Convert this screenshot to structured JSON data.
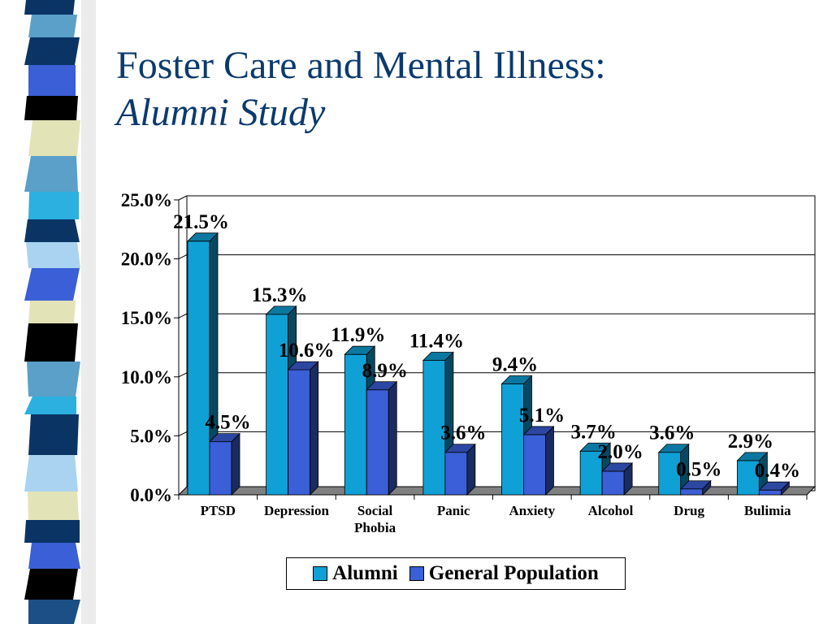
{
  "slide": {
    "title": "Foster Care and Mental Illness:",
    "subtitle": "Alumni Study"
  },
  "theme": {
    "title_color": "#0b3a6e",
    "stripe_colors": [
      "#0a3464",
      "#3b8bcc",
      "#e3e3b8",
      "#000000",
      "#5aa0c8",
      "#3a5fd6",
      "#a9d3f0",
      "#1c4f86",
      "#2bb0e0"
    ]
  },
  "chart_data": {
    "type": "bar",
    "categories": [
      "PTSD",
      "Depression",
      "Social Phobia",
      "Panic",
      "Anxiety",
      "Alcohol",
      "Drug",
      "Bulimia"
    ],
    "series": [
      {
        "name": "Alumni",
        "color": "#0fa0d6",
        "values": [
          21.5,
          15.3,
          11.9,
          11.4,
          9.4,
          3.7,
          3.6,
          2.9
        ]
      },
      {
        "name": "General Population",
        "color": "#3a5fd6",
        "values": [
          4.5,
          10.6,
          8.9,
          3.6,
          5.1,
          2.0,
          0.5,
          0.4
        ]
      }
    ],
    "data_labels": [
      [
        "21.5%",
        "15.3%",
        "11.9%",
        "11.4%",
        "9.4%",
        "3.7%",
        "3.6%",
        "2.9%"
      ],
      [
        "4.5%",
        "10.6%",
        "8.9%",
        "3.6%",
        "5.1%",
        "2.0%",
        "0.5%",
        "0.4%"
      ]
    ],
    "y_ticks": [
      "0.0%",
      "5.0%",
      "10.0%",
      "15.0%",
      "20.0%",
      "25.0%"
    ],
    "ylim": [
      0,
      25
    ],
    "grid": true,
    "legend": "bottom",
    "title": "",
    "xlabel": "",
    "ylabel": ""
  }
}
